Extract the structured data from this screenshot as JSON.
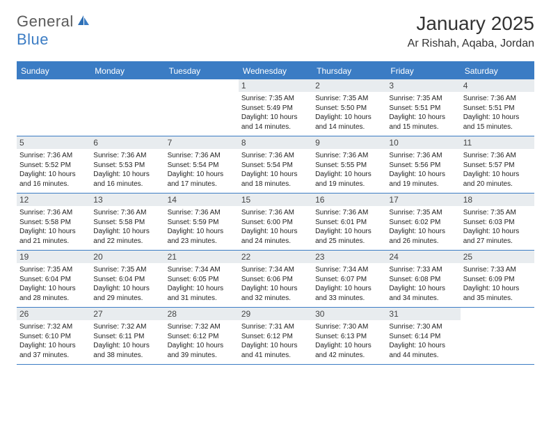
{
  "logo": {
    "general": "General",
    "blue": "Blue"
  },
  "title": "January 2025",
  "location": "Ar Rishah, Aqaba, Jordan",
  "dayheaders": [
    "Sunday",
    "Monday",
    "Tuesday",
    "Wednesday",
    "Thursday",
    "Friday",
    "Saturday"
  ],
  "colors": {
    "accent": "#3b7cc4",
    "daynum_bg": "#e8ecef",
    "text": "#222222",
    "title_text": "#333333",
    "logo_gray": "#5a5a5a"
  },
  "fonts": {
    "title_size_pt": 21,
    "location_size_pt": 12,
    "dayheader_size_pt": 9,
    "daynum_size_pt": 9,
    "detail_size_pt": 7.5
  },
  "weeks": [
    [
      {
        "empty": true
      },
      {
        "empty": true
      },
      {
        "empty": true
      },
      {
        "day": "1",
        "sunrise": "Sunrise: 7:35 AM",
        "sunset": "Sunset: 5:49 PM",
        "daylight1": "Daylight: 10 hours",
        "daylight2": "and 14 minutes."
      },
      {
        "day": "2",
        "sunrise": "Sunrise: 7:35 AM",
        "sunset": "Sunset: 5:50 PM",
        "daylight1": "Daylight: 10 hours",
        "daylight2": "and 14 minutes."
      },
      {
        "day": "3",
        "sunrise": "Sunrise: 7:35 AM",
        "sunset": "Sunset: 5:51 PM",
        "daylight1": "Daylight: 10 hours",
        "daylight2": "and 15 minutes."
      },
      {
        "day": "4",
        "sunrise": "Sunrise: 7:36 AM",
        "sunset": "Sunset: 5:51 PM",
        "daylight1": "Daylight: 10 hours",
        "daylight2": "and 15 minutes."
      }
    ],
    [
      {
        "day": "5",
        "sunrise": "Sunrise: 7:36 AM",
        "sunset": "Sunset: 5:52 PM",
        "daylight1": "Daylight: 10 hours",
        "daylight2": "and 16 minutes."
      },
      {
        "day": "6",
        "sunrise": "Sunrise: 7:36 AM",
        "sunset": "Sunset: 5:53 PM",
        "daylight1": "Daylight: 10 hours",
        "daylight2": "and 16 minutes."
      },
      {
        "day": "7",
        "sunrise": "Sunrise: 7:36 AM",
        "sunset": "Sunset: 5:54 PM",
        "daylight1": "Daylight: 10 hours",
        "daylight2": "and 17 minutes."
      },
      {
        "day": "8",
        "sunrise": "Sunrise: 7:36 AM",
        "sunset": "Sunset: 5:54 PM",
        "daylight1": "Daylight: 10 hours",
        "daylight2": "and 18 minutes."
      },
      {
        "day": "9",
        "sunrise": "Sunrise: 7:36 AM",
        "sunset": "Sunset: 5:55 PM",
        "daylight1": "Daylight: 10 hours",
        "daylight2": "and 19 minutes."
      },
      {
        "day": "10",
        "sunrise": "Sunrise: 7:36 AM",
        "sunset": "Sunset: 5:56 PM",
        "daylight1": "Daylight: 10 hours",
        "daylight2": "and 19 minutes."
      },
      {
        "day": "11",
        "sunrise": "Sunrise: 7:36 AM",
        "sunset": "Sunset: 5:57 PM",
        "daylight1": "Daylight: 10 hours",
        "daylight2": "and 20 minutes."
      }
    ],
    [
      {
        "day": "12",
        "sunrise": "Sunrise: 7:36 AM",
        "sunset": "Sunset: 5:58 PM",
        "daylight1": "Daylight: 10 hours",
        "daylight2": "and 21 minutes."
      },
      {
        "day": "13",
        "sunrise": "Sunrise: 7:36 AM",
        "sunset": "Sunset: 5:58 PM",
        "daylight1": "Daylight: 10 hours",
        "daylight2": "and 22 minutes."
      },
      {
        "day": "14",
        "sunrise": "Sunrise: 7:36 AM",
        "sunset": "Sunset: 5:59 PM",
        "daylight1": "Daylight: 10 hours",
        "daylight2": "and 23 minutes."
      },
      {
        "day": "15",
        "sunrise": "Sunrise: 7:36 AM",
        "sunset": "Sunset: 6:00 PM",
        "daylight1": "Daylight: 10 hours",
        "daylight2": "and 24 minutes."
      },
      {
        "day": "16",
        "sunrise": "Sunrise: 7:36 AM",
        "sunset": "Sunset: 6:01 PM",
        "daylight1": "Daylight: 10 hours",
        "daylight2": "and 25 minutes."
      },
      {
        "day": "17",
        "sunrise": "Sunrise: 7:35 AM",
        "sunset": "Sunset: 6:02 PM",
        "daylight1": "Daylight: 10 hours",
        "daylight2": "and 26 minutes."
      },
      {
        "day": "18",
        "sunrise": "Sunrise: 7:35 AM",
        "sunset": "Sunset: 6:03 PM",
        "daylight1": "Daylight: 10 hours",
        "daylight2": "and 27 minutes."
      }
    ],
    [
      {
        "day": "19",
        "sunrise": "Sunrise: 7:35 AM",
        "sunset": "Sunset: 6:04 PM",
        "daylight1": "Daylight: 10 hours",
        "daylight2": "and 28 minutes."
      },
      {
        "day": "20",
        "sunrise": "Sunrise: 7:35 AM",
        "sunset": "Sunset: 6:04 PM",
        "daylight1": "Daylight: 10 hours",
        "daylight2": "and 29 minutes."
      },
      {
        "day": "21",
        "sunrise": "Sunrise: 7:34 AM",
        "sunset": "Sunset: 6:05 PM",
        "daylight1": "Daylight: 10 hours",
        "daylight2": "and 31 minutes."
      },
      {
        "day": "22",
        "sunrise": "Sunrise: 7:34 AM",
        "sunset": "Sunset: 6:06 PM",
        "daylight1": "Daylight: 10 hours",
        "daylight2": "and 32 minutes."
      },
      {
        "day": "23",
        "sunrise": "Sunrise: 7:34 AM",
        "sunset": "Sunset: 6:07 PM",
        "daylight1": "Daylight: 10 hours",
        "daylight2": "and 33 minutes."
      },
      {
        "day": "24",
        "sunrise": "Sunrise: 7:33 AM",
        "sunset": "Sunset: 6:08 PM",
        "daylight1": "Daylight: 10 hours",
        "daylight2": "and 34 minutes."
      },
      {
        "day": "25",
        "sunrise": "Sunrise: 7:33 AM",
        "sunset": "Sunset: 6:09 PM",
        "daylight1": "Daylight: 10 hours",
        "daylight2": "and 35 minutes."
      }
    ],
    [
      {
        "day": "26",
        "sunrise": "Sunrise: 7:32 AM",
        "sunset": "Sunset: 6:10 PM",
        "daylight1": "Daylight: 10 hours",
        "daylight2": "and 37 minutes."
      },
      {
        "day": "27",
        "sunrise": "Sunrise: 7:32 AM",
        "sunset": "Sunset: 6:11 PM",
        "daylight1": "Daylight: 10 hours",
        "daylight2": "and 38 minutes."
      },
      {
        "day": "28",
        "sunrise": "Sunrise: 7:32 AM",
        "sunset": "Sunset: 6:12 PM",
        "daylight1": "Daylight: 10 hours",
        "daylight2": "and 39 minutes."
      },
      {
        "day": "29",
        "sunrise": "Sunrise: 7:31 AM",
        "sunset": "Sunset: 6:12 PM",
        "daylight1": "Daylight: 10 hours",
        "daylight2": "and 41 minutes."
      },
      {
        "day": "30",
        "sunrise": "Sunrise: 7:30 AM",
        "sunset": "Sunset: 6:13 PM",
        "daylight1": "Daylight: 10 hours",
        "daylight2": "and 42 minutes."
      },
      {
        "day": "31",
        "sunrise": "Sunrise: 7:30 AM",
        "sunset": "Sunset: 6:14 PM",
        "daylight1": "Daylight: 10 hours",
        "daylight2": "and 44 minutes."
      },
      {
        "empty": true
      }
    ]
  ]
}
